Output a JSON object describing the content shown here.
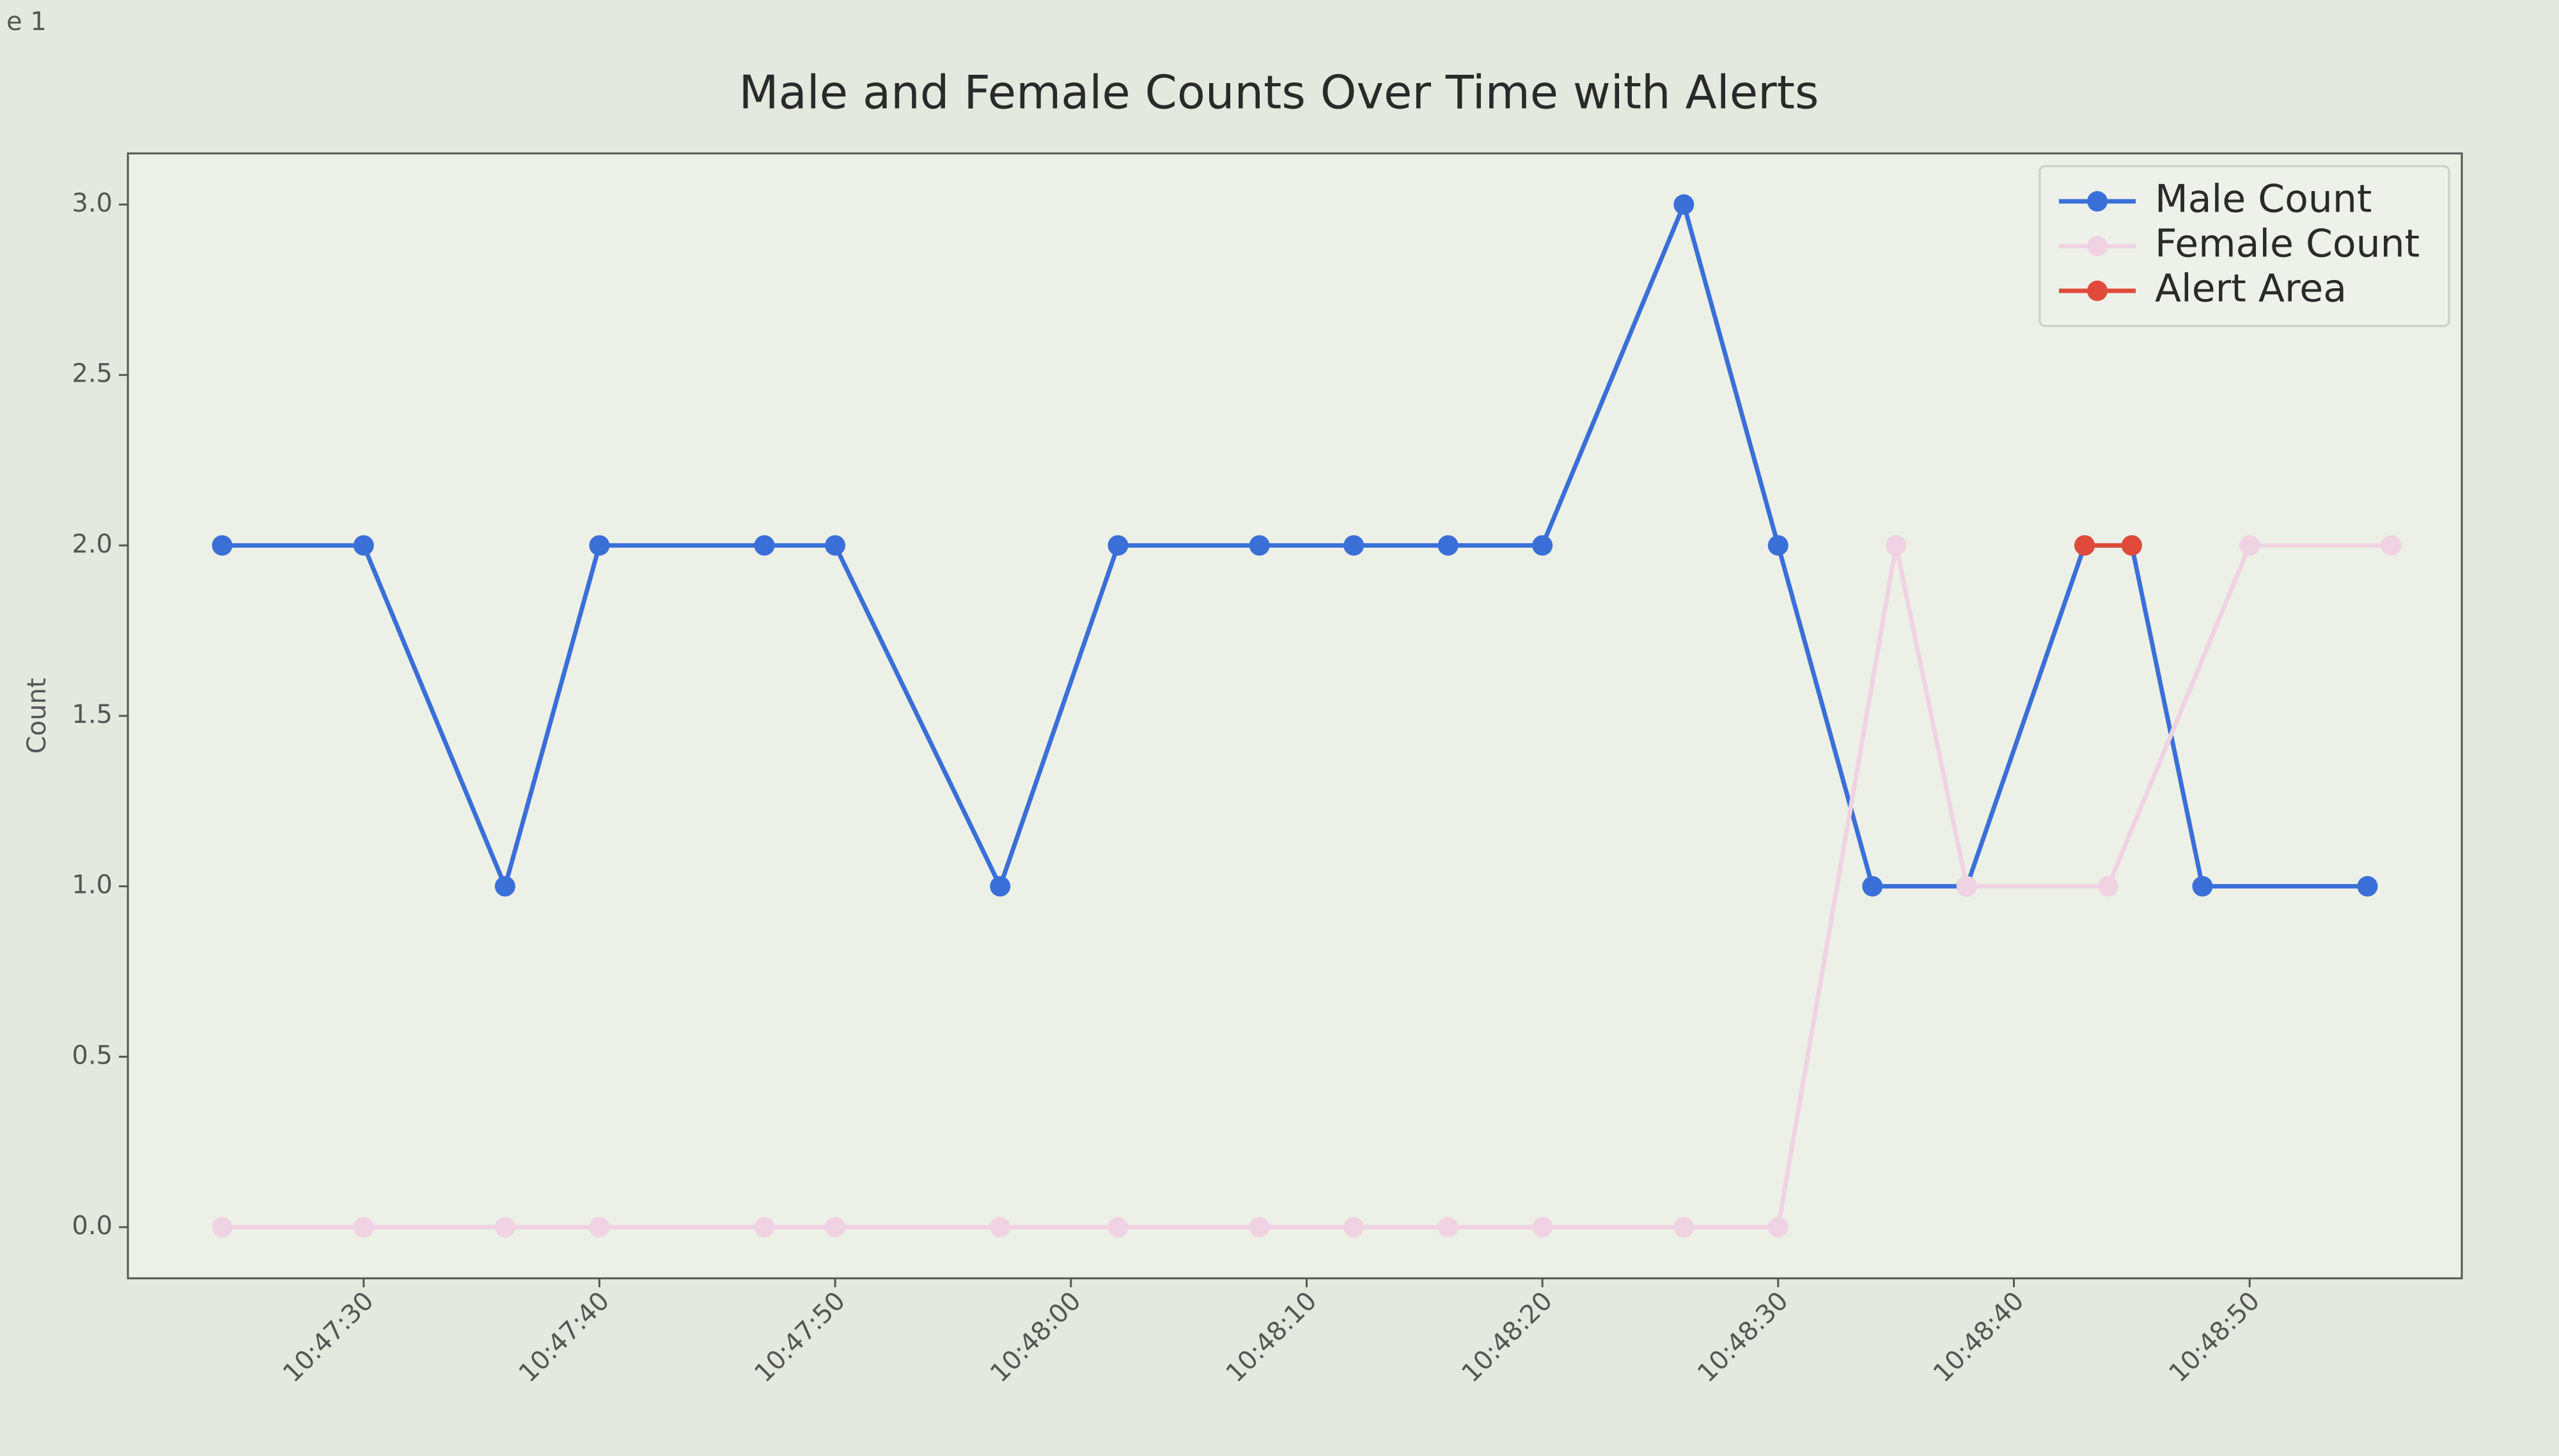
{
  "window_title": "e 1",
  "chart_data": {
    "type": "line",
    "title": "Male and Female Counts Over Time with Alerts",
    "ylabel": "Count",
    "xlim": [
      "10:47:20",
      "10:48:59"
    ],
    "xticks": [
      "10:47:30",
      "10:47:40",
      "10:47:50",
      "10:48:00",
      "10:48:10",
      "10:48:20",
      "10:48:30",
      "10:48:40",
      "10:48:50"
    ],
    "ylim": [
      -0.15,
      3.15
    ],
    "yticks": [
      {
        "value": 0,
        "label": "0.0"
      },
      {
        "value": 0.5,
        "label": "0.5"
      },
      {
        "value": 1,
        "label": "1.0"
      },
      {
        "value": 1.5,
        "label": "1.5"
      },
      {
        "value": 2,
        "label": "2.0"
      },
      {
        "value": 2.5,
        "label": "2.5"
      },
      {
        "value": 3,
        "label": "3.0"
      }
    ],
    "legend": "upper right",
    "series": [
      {
        "name": "Male Count",
        "color": "#3a6fd8",
        "x": [
          "10:47:24",
          "10:47:30",
          "10:47:36",
          "10:47:40",
          "10:47:47",
          "10:47:50",
          "10:47:57",
          "10:48:02",
          "10:48:08",
          "10:48:12",
          "10:48:16",
          "10:48:20",
          "10:48:26",
          "10:48:30",
          "10:48:34",
          "10:48:38",
          "10:48:43",
          "10:48:45",
          "10:48:48",
          "10:48:55"
        ],
        "values": [
          2,
          2,
          1,
          2,
          2,
          2,
          1,
          2,
          2,
          2,
          2,
          2,
          3,
          2,
          1,
          1,
          2,
          2,
          1,
          1
        ]
      },
      {
        "name": "Female Count",
        "color": "#f0d3e2",
        "x": [
          "10:47:24",
          "10:47:30",
          "10:47:36",
          "10:47:40",
          "10:47:47",
          "10:47:50",
          "10:47:57",
          "10:48:02",
          "10:48:08",
          "10:48:12",
          "10:48:16",
          "10:48:20",
          "10:48:26",
          "10:48:30",
          "10:48:35",
          "10:48:38",
          "10:48:44",
          "10:48:50",
          "10:48:56"
        ],
        "values": [
          0,
          0,
          0,
          0,
          0,
          0,
          0,
          0,
          0,
          0,
          0,
          0,
          0,
          0,
          2,
          1,
          1,
          2,
          2
        ]
      },
      {
        "name": "Alert Area",
        "color": "#e04a3a",
        "x": [
          "10:48:43",
          "10:48:45"
        ],
        "values": [
          2,
          2
        ]
      }
    ]
  }
}
